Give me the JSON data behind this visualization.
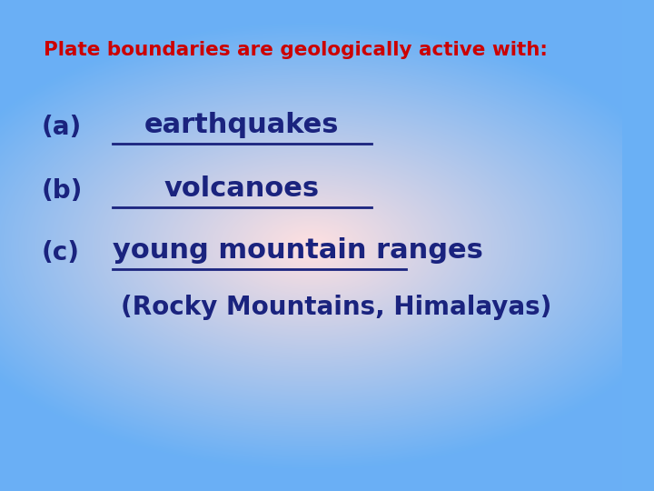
{
  "title": "Plate boundaries are geologically active with:",
  "title_color": "#cc0000",
  "title_fontsize": 15.5,
  "title_bold": true,
  "item_a_label": "(a)",
  "item_a_answer": "earthquakes",
  "item_b_label": "(b)",
  "item_b_answer": "volcanoes",
  "item_c_label": "(c)",
  "item_c_answer": "young mountain ranges",
  "item_c_sub": "(Rocky Mountains, Himalayas)",
  "item_color": "#1a237e",
  "item_fontsize": 22,
  "sub_fontsize": 20,
  "label_fontsize": 20,
  "bg_center_color": "#ffe0e0",
  "bg_edge_color": "#6ab0f5",
  "underline_color": "#1a237e"
}
